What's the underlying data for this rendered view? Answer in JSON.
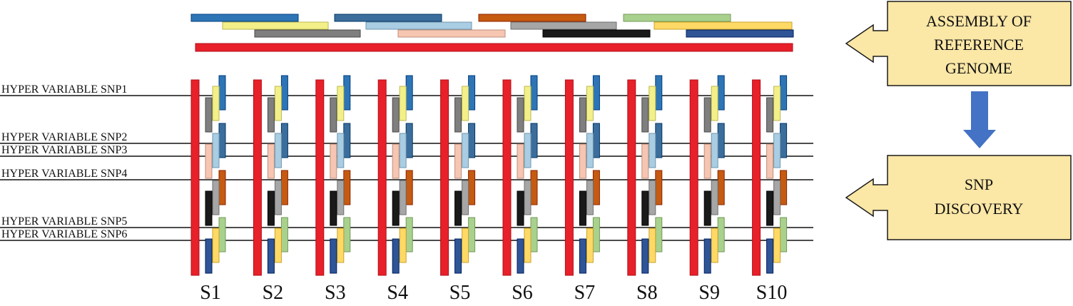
{
  "snp_labels": [
    "HYPER VARIABLE SNP1",
    "HYPER VARIABLE SNP2",
    "HYPER VARIABLE SNP3",
    "HYPER VARIABLE SNP4",
    "HYPER VARIABLE SNP5",
    "HYPER VARIABLE SNP6"
  ],
  "samples": [
    "S1",
    "S2",
    "S3",
    "S4",
    "S5",
    "S6",
    "S7",
    "S8",
    "S9",
    "S10"
  ],
  "callouts": {
    "assembly": [
      "ASSEMBLY OF",
      "REFERENCE",
      "GENOME"
    ],
    "discovery": [
      "SNP",
      "DISCOVERY"
    ]
  },
  "colors": {
    "reference": "#e8202a",
    "callout_fill": "#fbe7a6",
    "arrow_down": "#4472c4",
    "fragments": [
      "#2e75b6",
      "#f3f08a",
      "#7f7f7f",
      "#3b6e9c",
      "#a9cde3",
      "#f6c6b2",
      "#c55a11",
      "#a6a6a6",
      "#1a1a1a",
      "#a9d18e",
      "#ffd966",
      "#2f5597"
    ]
  }
}
